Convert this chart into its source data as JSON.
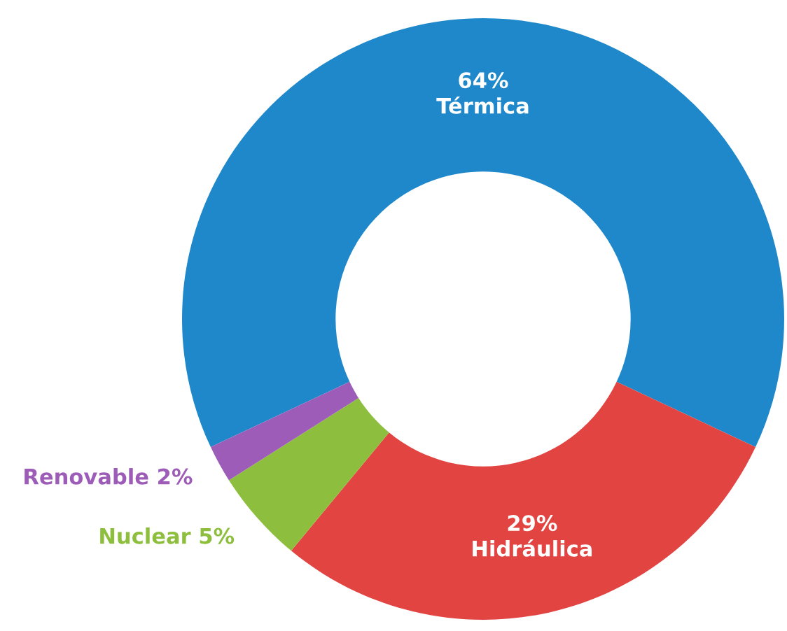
{
  "chart_data": {
    "type": "donut",
    "categories": [
      "Térmica",
      "Hidráulica",
      "Nuclear",
      "Renovable"
    ],
    "values": [
      64,
      29,
      5,
      2
    ],
    "value_labels": [
      "64%",
      "29%",
      "5%",
      "2%"
    ],
    "colors": [
      "#1e88cb",
      "#e24442",
      "#8dbe3e",
      "#9d5cb8"
    ]
  }
}
